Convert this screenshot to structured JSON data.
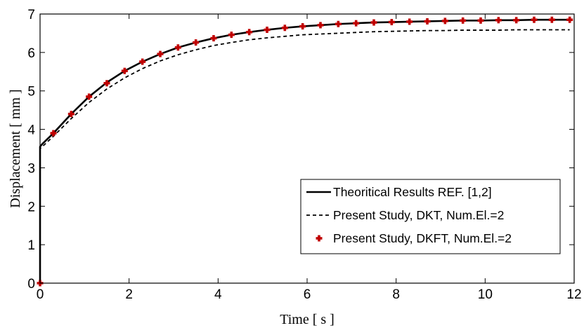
{
  "chart_data": {
    "type": "line",
    "xlabel": "Time [ s ]",
    "ylabel": "Displacement [ mm ]",
    "xlim": [
      0,
      12
    ],
    "ylim": [
      0,
      7
    ],
    "xticks": [
      "0",
      "2",
      "4",
      "6",
      "8",
      "10",
      "12"
    ],
    "yticks": [
      "0",
      "1",
      "2",
      "3",
      "4",
      "5",
      "6",
      "7"
    ],
    "grid": false,
    "legend_position": "bottom-right",
    "series": [
      {
        "name": "Theoritical Results REF. [1,2]",
        "style": "solid",
        "color": "#000000",
        "x": [
          0,
          0,
          0.05,
          0.3,
          0.7,
          1.1,
          1.5,
          1.9,
          2.3,
          2.7,
          3.1,
          3.5,
          3.9,
          4.3,
          4.7,
          5.1,
          5.5,
          5.9,
          6.3,
          6.7,
          7.1,
          7.5,
          7.9,
          8.3,
          8.7,
          9.1,
          9.5,
          9.9,
          10.3,
          10.7,
          11.1,
          11.5,
          11.9
        ],
        "y": [
          0,
          3.55,
          3.62,
          3.9,
          4.4,
          4.85,
          5.22,
          5.52,
          5.76,
          5.96,
          6.13,
          6.26,
          6.37,
          6.46,
          6.53,
          6.59,
          6.64,
          6.68,
          6.71,
          6.74,
          6.76,
          6.78,
          6.79,
          6.8,
          6.81,
          6.82,
          6.83,
          6.83,
          6.84,
          6.84,
          6.85,
          6.85,
          6.85
        ]
      },
      {
        "name": "Present Study, DKT,  Num.El.=2",
        "style": "dashed",
        "color": "#000000",
        "x": [
          0,
          0,
          0.05,
          0.3,
          0.7,
          1.1,
          1.5,
          1.9,
          2.3,
          2.7,
          3.1,
          3.5,
          3.9,
          4.3,
          4.7,
          5.1,
          5.5,
          5.9,
          6.3,
          6.7,
          7.1,
          7.5,
          7.9,
          8.3,
          8.7,
          9.1,
          9.5,
          9.9,
          10.3,
          10.7,
          11.1,
          11.5,
          11.9
        ],
        "y": [
          0,
          3.5,
          3.55,
          3.82,
          4.28,
          4.7,
          5.05,
          5.34,
          5.58,
          5.78,
          5.94,
          6.07,
          6.18,
          6.26,
          6.33,
          6.38,
          6.42,
          6.46,
          6.48,
          6.5,
          6.52,
          6.54,
          6.55,
          6.56,
          6.57,
          6.57,
          6.58,
          6.58,
          6.58,
          6.59,
          6.59,
          6.59,
          6.59
        ]
      },
      {
        "name": "Present Study, DKFT, Num.El.=2",
        "style": "markers",
        "color": "#c00000",
        "x": [
          0,
          0.3,
          0.7,
          1.1,
          1.5,
          1.9,
          2.3,
          2.7,
          3.1,
          3.5,
          3.9,
          4.3,
          4.7,
          5.1,
          5.5,
          5.9,
          6.3,
          6.7,
          7.1,
          7.5,
          7.9,
          8.3,
          8.7,
          9.1,
          9.5,
          9.9,
          10.3,
          10.7,
          11.1,
          11.5,
          11.9
        ],
        "y": [
          0,
          3.9,
          4.4,
          4.85,
          5.2,
          5.52,
          5.76,
          5.96,
          6.13,
          6.26,
          6.37,
          6.46,
          6.53,
          6.59,
          6.64,
          6.68,
          6.71,
          6.74,
          6.76,
          6.78,
          6.79,
          6.8,
          6.81,
          6.82,
          6.83,
          6.83,
          6.84,
          6.84,
          6.85,
          6.85,
          6.85
        ]
      }
    ]
  }
}
